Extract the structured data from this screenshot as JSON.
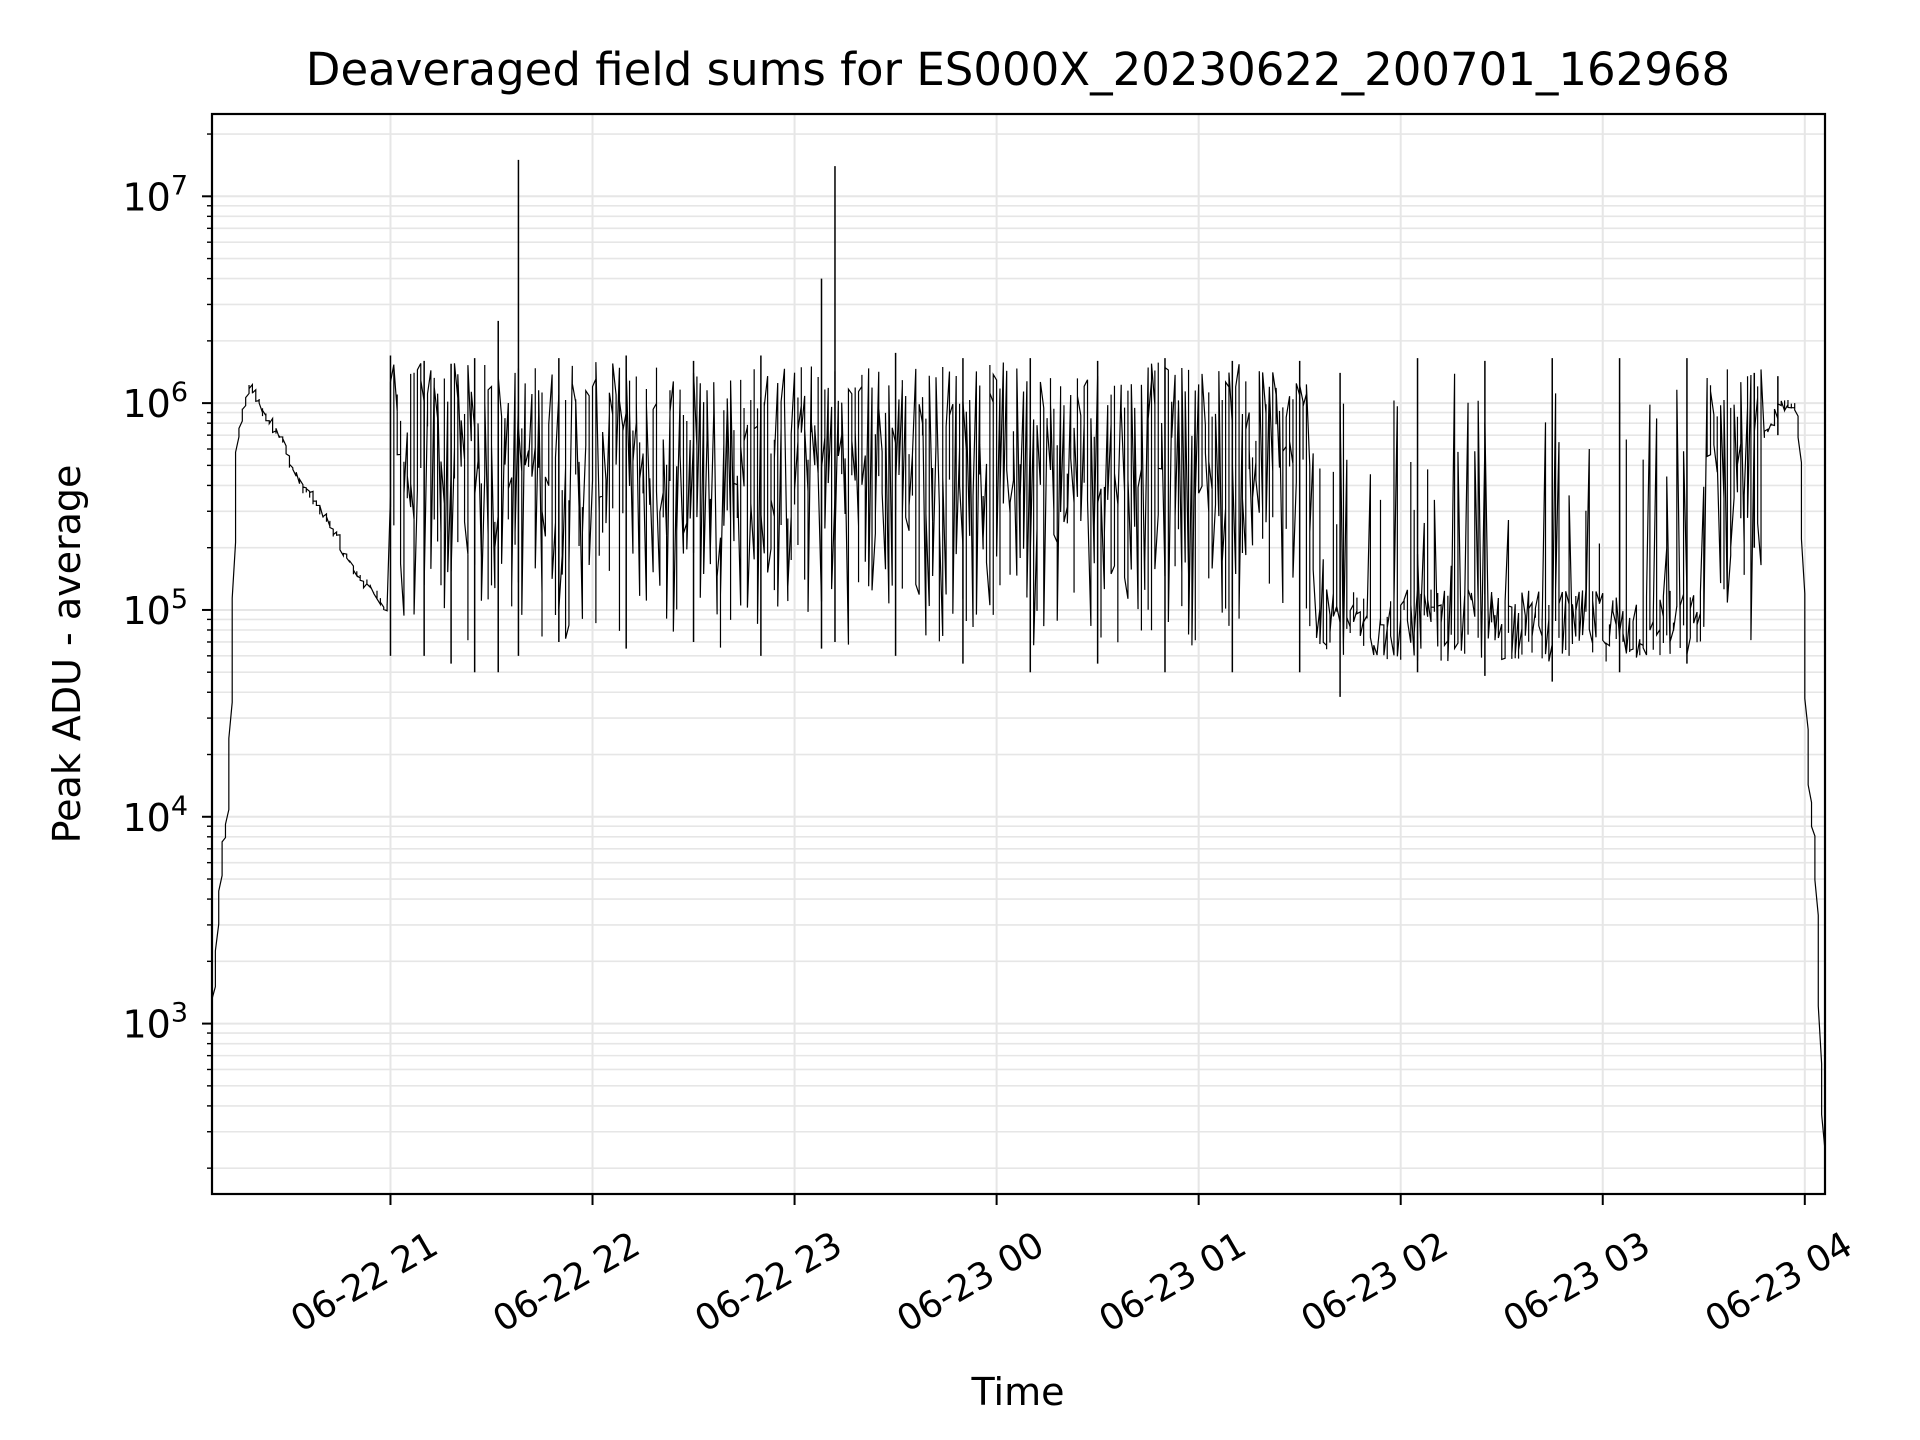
{
  "chart_data": {
    "type": "line",
    "title": "Deaveraged field sums for ES000X_20230622_200701_162968",
    "xlabel": "Time",
    "ylabel": "Peak ADU - average",
    "yscale": "log",
    "ylim": [
      150,
      25000000
    ],
    "xlim": [
      "2023-06-22 20:07",
      "2023-06-23 04:06"
    ],
    "grid": true,
    "x_ticks": [
      {
        "t": "2023-06-22 21:00",
        "label": "06-22 21"
      },
      {
        "t": "2023-06-22 22:00",
        "label": "06-22 22"
      },
      {
        "t": "2023-06-22 23:00",
        "label": "06-22 23"
      },
      {
        "t": "2023-06-23 00:00",
        "label": "06-23 00"
      },
      {
        "t": "2023-06-23 01:00",
        "label": "06-23 01"
      },
      {
        "t": "2023-06-23 02:00",
        "label": "06-23 02"
      },
      {
        "t": "2023-06-23 03:00",
        "label": "06-23 03"
      },
      {
        "t": "2023-06-23 04:00",
        "label": "06-23 04"
      }
    ],
    "y_ticks": [
      {
        "value": 1000,
        "base": "10",
        "exp": "3"
      },
      {
        "value": 10000,
        "base": "10",
        "exp": "4"
      },
      {
        "value": 100000,
        "base": "10",
        "exp": "5"
      },
      {
        "value": 1000000,
        "base": "10",
        "exp": "6"
      },
      {
        "value": 10000000,
        "base": "10",
        "exp": "7"
      }
    ],
    "series": [
      {
        "color": "#000000",
        "points": [
          [
            "2023-06-22 20:07",
            2000
          ],
          [
            "2023-06-22 20:08",
            1200
          ],
          [
            "2023-06-22 20:09",
            2500
          ],
          [
            "2023-06-22 20:10",
            4500
          ],
          [
            "2023-06-22 20:11",
            8000
          ],
          [
            "2023-06-22 20:12",
            10000
          ],
          [
            "2023-06-22 20:13",
            30000
          ],
          [
            "2023-06-22 20:14",
            200000
          ],
          [
            "2023-06-22 20:15",
            600000
          ],
          [
            "2023-06-22 20:17",
            1000000
          ],
          [
            "2023-06-22 20:19",
            1200000
          ],
          [
            "2023-06-22 20:22",
            950000
          ],
          [
            "2023-06-22 20:25",
            800000
          ],
          [
            "2023-06-22 20:28",
            700000
          ],
          [
            "2023-06-22 20:31",
            500000
          ],
          [
            "2023-06-22 20:34",
            400000
          ],
          [
            "2023-06-22 20:37",
            350000
          ],
          [
            "2023-06-22 20:40",
            300000
          ],
          [
            "2023-06-22 20:43",
            250000
          ],
          [
            "2023-06-22 20:46",
            200000
          ],
          [
            "2023-06-22 20:49",
            160000
          ],
          [
            "2023-06-22 20:52",
            140000
          ],
          [
            "2023-06-22 20:56",
            120000
          ],
          [
            "2023-06-22 21:00",
            100000
          ],
          [
            "2023-06-22 21:05",
            90000
          ],
          [
            "2023-06-22 21:12",
            80000
          ],
          [
            "2023-06-22 21:20",
            75000
          ],
          [
            "2023-06-22 21:30",
            70000
          ],
          [
            "2023-06-22 21:40",
            1200000
          ],
          [
            "2023-06-22 22:00",
            900000
          ],
          [
            "2023-06-22 22:20",
            1100000
          ],
          [
            "2023-06-22 22:40",
            800000
          ],
          [
            "2023-06-22 23:00",
            1300000
          ],
          [
            "2023-06-22 23:20",
            1000000
          ],
          [
            "2023-06-22 23:40",
            700000
          ],
          [
            "2023-06-23 00:00",
            900000
          ],
          [
            "2023-06-23 00:20",
            600000
          ],
          [
            "2023-06-23 00:40",
            500000
          ],
          [
            "2023-06-23 01:00",
            350000
          ],
          [
            "2023-06-23 01:20",
            250000
          ],
          [
            "2023-06-23 01:40",
            90000
          ],
          [
            "2023-06-23 02:00",
            85000
          ],
          [
            "2023-06-23 02:20",
            80000
          ],
          [
            "2023-06-23 02:40",
            75000
          ],
          [
            "2023-06-23 03:00",
            75000
          ],
          [
            "2023-06-23 03:10",
            80000
          ],
          [
            "2023-06-23 03:20",
            100000
          ],
          [
            "2023-06-23 03:30",
            180000
          ],
          [
            "2023-06-23 03:40",
            350000
          ],
          [
            "2023-06-23 03:47",
            600000
          ],
          [
            "2023-06-23 03:53",
            950000
          ],
          [
            "2023-06-23 03:57",
            1000000
          ],
          [
            "2023-06-23 03:59",
            700000
          ],
          [
            "2023-06-23 04:00",
            200000
          ],
          [
            "2023-06-23 04:01",
            30000
          ],
          [
            "2023-06-23 04:02",
            12000
          ],
          [
            "2023-06-23 04:03",
            9000
          ],
          [
            "2023-06-23 04:04",
            4000
          ],
          [
            "2023-06-23 04:05",
            700
          ],
          [
            "2023-06-23 04:06",
            250
          ]
        ],
        "spikes": [
          [
            "2023-06-22 21:00",
            60000,
            1700000
          ],
          [
            "2023-06-22 21:10",
            60000,
            1600000
          ],
          [
            "2023-06-22 21:18",
            55000,
            1550000
          ],
          [
            "2023-06-22 21:25",
            50000,
            1650000
          ],
          [
            "2023-06-22 21:32",
            50000,
            2500000
          ],
          [
            "2023-06-22 21:38",
            60000,
            15000000
          ],
          [
            "2023-06-22 21:50",
            70000,
            1650000
          ],
          [
            "2023-06-22 22:10",
            65000,
            1700000
          ],
          [
            "2023-06-22 22:30",
            70000,
            1600000
          ],
          [
            "2023-06-22 22:50",
            60000,
            1700000
          ],
          [
            "2023-06-22 23:08",
            65000,
            4000000
          ],
          [
            "2023-06-22 23:12",
            70000,
            14000000
          ],
          [
            "2023-06-22 23:30",
            60000,
            1750000
          ],
          [
            "2023-06-22 23:50",
            55000,
            1650000
          ],
          [
            "2023-06-23 00:10",
            50000,
            1650000
          ],
          [
            "2023-06-23 00:30",
            55000,
            1600000
          ],
          [
            "2023-06-23 00:50",
            50000,
            1650000
          ],
          [
            "2023-06-23 01:10",
            50000,
            1600000
          ],
          [
            "2023-06-23 01:30",
            50000,
            1600000
          ],
          [
            "2023-06-23 01:42",
            38000,
            1400000
          ],
          [
            "2023-06-23 02:05",
            50000,
            1650000
          ],
          [
            "2023-06-23 02:25",
            48000,
            1600000
          ],
          [
            "2023-06-23 02:45",
            45000,
            1650000
          ],
          [
            "2023-06-23 03:05",
            50000,
            1650000
          ],
          [
            "2023-06-23 03:25",
            55000,
            1650000
          ],
          [
            "2023-06-23 03:45",
            200000,
            1400000
          ],
          [
            "2023-06-23 03:52",
            700000,
            1350000
          ]
        ]
      }
    ]
  }
}
